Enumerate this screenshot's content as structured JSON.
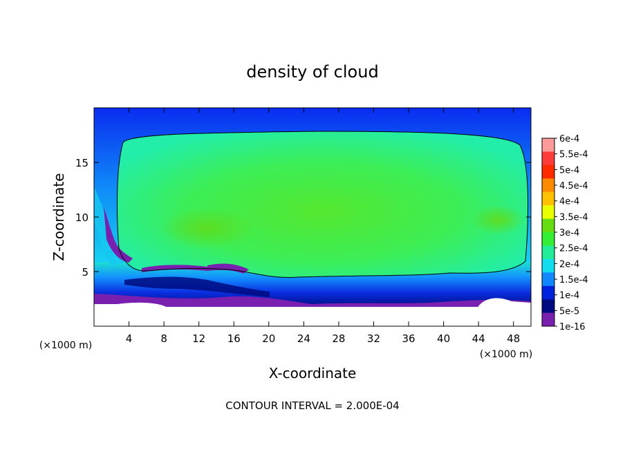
{
  "chart_data": {
    "type": "heatmap",
    "title": "density of cloud",
    "xlabel": "X-coordinate",
    "ylabel": "Z-coordinate",
    "x_unit": "(×1000 m)",
    "z_unit": "(×1000 m)",
    "xlim": [
      0,
      50
    ],
    "ylim": [
      0,
      20
    ],
    "xticks": [
      4,
      8,
      12,
      16,
      20,
      24,
      28,
      32,
      36,
      40,
      44,
      48
    ],
    "yticks": [
      5,
      10,
      15
    ],
    "footer": "CONTOUR INTERVAL = 2.000E-04",
    "contour_level": 0.0002,
    "colorbar": {
      "labels": [
        "6e-4",
        "5.5e-4",
        "5e-4",
        "4.5e-4",
        "4e-4",
        "3.5e-4",
        "3e-4",
        "2.5e-4",
        "2e-4",
        "1.5e-4",
        "1e-4",
        "5e-5",
        "1e-16"
      ],
      "colors": [
        "#ff9a9a",
        "#ff3a3a",
        "#ff2a00",
        "#ff8a00",
        "#ffc000",
        "#e8ff00",
        "#66dd11",
        "#33ee33",
        "#22ee99",
        "#11ddee",
        "#1188ff",
        "#0022dd",
        "#000a80",
        "#7a20b0"
      ]
    }
  }
}
